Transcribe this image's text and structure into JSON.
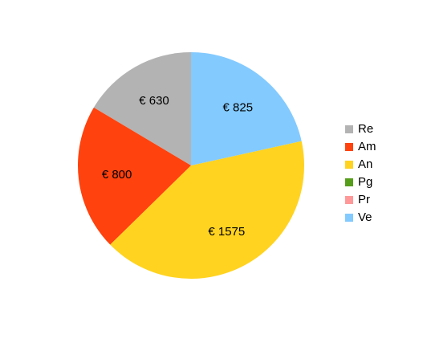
{
  "chart_data": {
    "type": "pie",
    "categories": [
      "Re",
      "Am",
      "An",
      "Pg",
      "Pr",
      "Ve"
    ],
    "values": [
      630,
      800,
      1575,
      0,
      0,
      825
    ],
    "data_labels": [
      "€ 630",
      "€ 800",
      "€ 1575",
      "",
      "",
      "€ 825"
    ],
    "colors": [
      "#b3b3b3",
      "#ff420e",
      "#ffd320",
      "#579d1c",
      "#ff9999",
      "#83caff"
    ],
    "start_angle_deg": 0,
    "direction": "clockwise-from-top, reverse order",
    "legend_position": "right"
  }
}
